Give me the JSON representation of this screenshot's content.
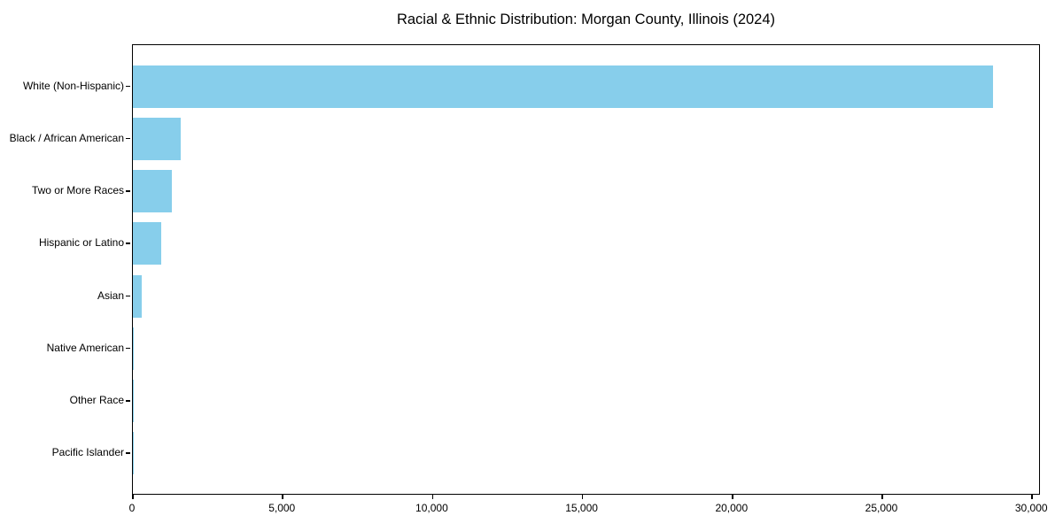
{
  "chart_data": {
    "type": "bar",
    "orientation": "horizontal",
    "title": "Racial & Ethnic Distribution: Morgan County, Illinois (2024)",
    "categories": [
      "White (Non-Hispanic)",
      "Black / African American",
      "Two or More Races",
      "Hispanic or Latino",
      "Asian",
      "Native American",
      "Other Race",
      "Pacific Islander"
    ],
    "values": [
      28700,
      1600,
      1300,
      950,
      300,
      40,
      15,
      10
    ],
    "xlabel": "",
    "ylabel": "",
    "xlim": [
      0,
      30200
    ],
    "xticks": [
      0,
      5000,
      10000,
      15000,
      20000,
      25000,
      30000
    ],
    "xtick_labels": [
      "0",
      "5,000",
      "10,000",
      "15,000",
      "20,000",
      "25,000",
      "30,000"
    ],
    "bar_color": "#87CEEB",
    "axis_color": "#000000",
    "background_color": "#FFFFFF",
    "grid": false,
    "legend": false
  }
}
